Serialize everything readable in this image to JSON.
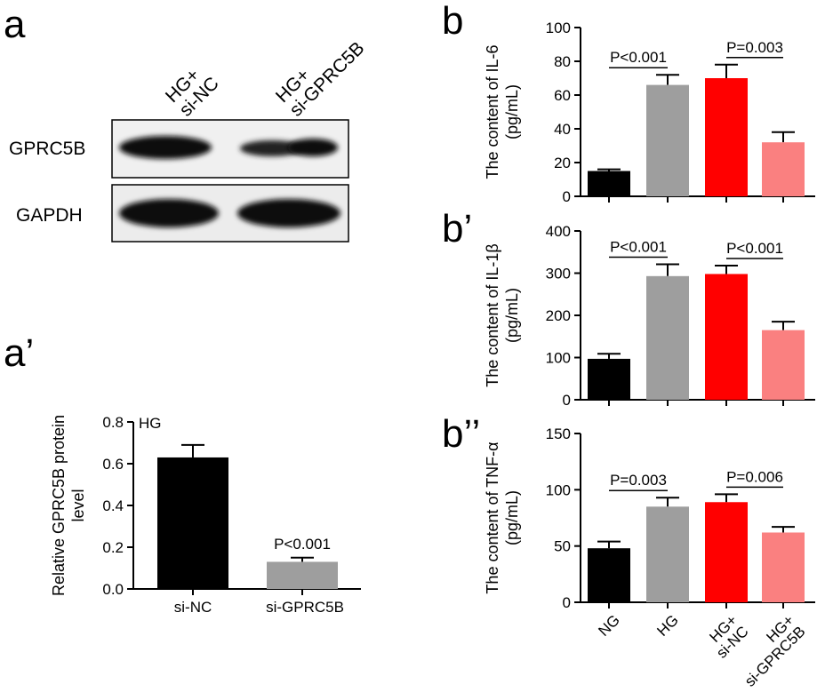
{
  "panel_letters": {
    "a": "a",
    "a_prime": "a’",
    "b": "b",
    "b_prime": "b’",
    "b_double": "b’’"
  },
  "blot": {
    "lanes": [
      {
        "line1": "HG+",
        "line2": "si-NC"
      },
      {
        "line1": "HG+",
        "line2": "si-GPRC5B"
      }
    ],
    "rows": [
      {
        "label": "GPRC5B"
      },
      {
        "label": "GAPDH"
      }
    ]
  },
  "chart_data": [
    {
      "id": "a_prime",
      "type": "bar",
      "title": "",
      "annotation": "HG",
      "ylabel_lines": [
        "Relative GPRC5B protein",
        "level"
      ],
      "categories": [
        "si-NC",
        "si-GPRC5B"
      ],
      "values": [
        0.63,
        0.13
      ],
      "errors": [
        0.06,
        0.02
      ],
      "colors": [
        "#000000",
        "#9e9e9e"
      ],
      "ylim": [
        0,
        0.8
      ],
      "yticks": [
        0.0,
        0.2,
        0.4,
        0.6,
        0.8
      ],
      "ytick_labels": [
        "0.0",
        "0.2",
        "0.4",
        "0.6",
        "0.8"
      ],
      "pvalues": [
        {
          "text": "P<0.001",
          "bar": 1
        }
      ],
      "grid": false
    },
    {
      "id": "b",
      "type": "bar",
      "title": "",
      "ylabel_lines": [
        "The content of IL-6",
        "(pg/mL)"
      ],
      "categories": [
        "NG",
        "HG",
        "HG+si-NC",
        "HG+si-GPRC5B"
      ],
      "values": [
        15,
        66,
        70,
        32
      ],
      "errors": [
        1,
        6,
        8,
        6
      ],
      "colors": [
        "#000000",
        "#9e9e9e",
        "#ff0000",
        "#fa8080"
      ],
      "ylim": [
        0,
        100
      ],
      "yticks": [
        0,
        20,
        40,
        60,
        80,
        100
      ],
      "ytick_labels": [
        "0",
        "20",
        "40",
        "60",
        "80",
        "100"
      ],
      "pvalues": [
        {
          "text": "P<0.001",
          "from": 0,
          "to": 1
        },
        {
          "text": "P=0.003",
          "from": 2,
          "to": 3
        }
      ],
      "grid": false
    },
    {
      "id": "b_prime",
      "type": "bar",
      "title": "",
      "ylabel_lines": [
        "The content of IL-1β",
        "(pg/mL)"
      ],
      "categories": [
        "NG",
        "HG",
        "HG+si-NC",
        "HG+si-GPRC5B"
      ],
      "values": [
        97,
        293,
        298,
        165
      ],
      "errors": [
        12,
        28,
        20,
        20
      ],
      "colors": [
        "#000000",
        "#9e9e9e",
        "#ff0000",
        "#fa8080"
      ],
      "ylim": [
        0,
        400
      ],
      "yticks": [
        0,
        100,
        200,
        300,
        400
      ],
      "ytick_labels": [
        "0",
        "100",
        "200",
        "300",
        "400"
      ],
      "pvalues": [
        {
          "text": "P<0.001",
          "from": 0,
          "to": 1
        },
        {
          "text": "P<0.001",
          "from": 2,
          "to": 3
        }
      ],
      "grid": false
    },
    {
      "id": "b_double",
      "type": "bar",
      "title": "",
      "ylabel_lines": [
        "The content of TNF-α",
        "(pg/mL)"
      ],
      "categories": [
        "NG",
        "HG",
        "HG+si-NC",
        "HG+si-GPRC5B"
      ],
      "values": [
        48,
        85,
        89,
        62
      ],
      "errors": [
        6,
        8,
        7,
        5
      ],
      "colors": [
        "#000000",
        "#9e9e9e",
        "#ff0000",
        "#fa8080"
      ],
      "ylim": [
        0,
        150
      ],
      "yticks": [
        0,
        50,
        100,
        150
      ],
      "ytick_labels": [
        "0",
        "50",
        "100",
        "150"
      ],
      "pvalues": [
        {
          "text": "P=0.003",
          "from": 0,
          "to": 1
        },
        {
          "text": "P=0.006",
          "from": 2,
          "to": 3
        }
      ],
      "xtick_lines": [
        [
          "NG"
        ],
        [
          "HG"
        ],
        [
          "HG+",
          "si-NC"
        ],
        [
          "HG+",
          "si-GPRC5B"
        ]
      ],
      "grid": false
    }
  ]
}
